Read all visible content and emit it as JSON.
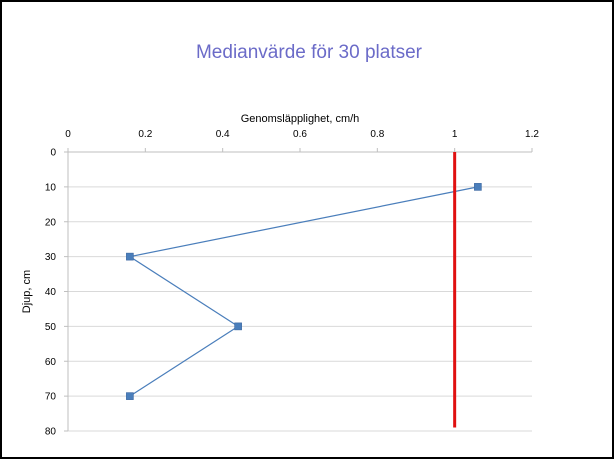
{
  "chart_data": {
    "type": "line",
    "title": "Medianvärde för 30 platser",
    "xlabel": "Genomsläpplighet, cm/h",
    "ylabel": "Djup, cm",
    "xlim": [
      0,
      1.2
    ],
    "ylim": [
      0,
      80
    ],
    "x_ticks": [
      "0",
      "0.2",
      "0.4",
      "0.6",
      "0.8",
      "1",
      "1.2"
    ],
    "y_ticks": [
      "0",
      "10",
      "20",
      "30",
      "40",
      "50",
      "60",
      "70",
      "80"
    ],
    "x_axis_position": "top",
    "y_axis_inverted": true,
    "grid": "horizontal",
    "legend": "none",
    "series": [
      {
        "color": "#4a7ebb",
        "marker": "square",
        "points": [
          {
            "x": 1.06,
            "y": 10
          },
          {
            "x": 0.16,
            "y": 30
          },
          {
            "x": 0.44,
            "y": 50
          },
          {
            "x": 0.16,
            "y": 70
          }
        ]
      }
    ],
    "reference_line": {
      "x": 1.0,
      "y_range": [
        0,
        79
      ],
      "color": "#e01010"
    },
    "colors": {
      "title": "#6b6bc8",
      "grid": "#d9d9d9"
    }
  }
}
